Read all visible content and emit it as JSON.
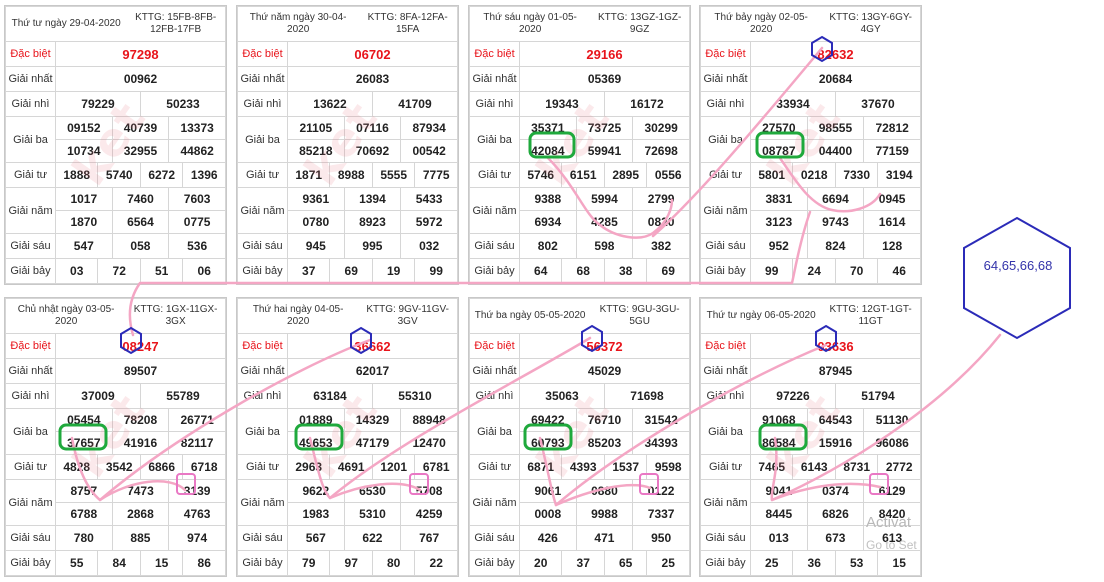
{
  "labels": {
    "db": "Đặc biệt",
    "n1": "Giải nhất",
    "n2": "Giải nhì",
    "b3": "Giải ba",
    "t4": "Giải tư",
    "n5": "Giải năm",
    "s6": "Giải sáu",
    "b7": "Giải bảy"
  },
  "cards": [
    {
      "date": "Thứ tư ngày 29-04-2020",
      "kttg": "KTTG: 15FB-8FB-12FB-17FB",
      "db": "97298",
      "n1": "00962",
      "n2": [
        "79229",
        "50233"
      ],
      "b3": [
        "09152",
        "40739",
        "13373",
        "10734",
        "32955",
        "44862"
      ],
      "t4": [
        "1888",
        "5740",
        "6272",
        "1396"
      ],
      "n5": [
        "1017",
        "7460",
        "7603",
        "1870",
        "6564",
        "0775"
      ],
      "s6": [
        "547",
        "058",
        "536"
      ],
      "b7": [
        "03",
        "72",
        "51",
        "06"
      ]
    },
    {
      "date": "Thứ năm ngày 30-04-2020",
      "kttg": "KTTG: 8FA-12FA-15FA",
      "db": "06702",
      "n1": "26083",
      "n2": [
        "13622",
        "41709"
      ],
      "b3": [
        "21105",
        "07116",
        "87934",
        "85218",
        "70692",
        "00542"
      ],
      "t4": [
        "1871",
        "8988",
        "5555",
        "7775"
      ],
      "n5": [
        "9361",
        "1394",
        "5433",
        "0780",
        "8923",
        "5972"
      ],
      "s6": [
        "945",
        "995",
        "032"
      ],
      "b7": [
        "37",
        "69",
        "19",
        "99"
      ]
    },
    {
      "date": "Thứ sáu ngày 01-05-2020",
      "kttg": "KTTG: 13GZ-1GZ-9GZ",
      "db": "29166",
      "n1": "05369",
      "n2": [
        "19343",
        "16172"
      ],
      "b3": [
        "35371",
        "73725",
        "30299",
        "42084",
        "59941",
        "72698"
      ],
      "t4": [
        "5746",
        "6151",
        "2895",
        "0556"
      ],
      "n5": [
        "9388",
        "5994",
        "2799",
        "6934",
        "4285",
        "0820"
      ],
      "s6": [
        "802",
        "598",
        "382"
      ],
      "b7": [
        "64",
        "68",
        "38",
        "69"
      ]
    },
    {
      "date": "Thứ bảy ngày 02-05-2020",
      "kttg": "KTTG: 13GY-6GY-4GY",
      "db": "82632",
      "n1": "20684",
      "n2": [
        "33934",
        "37670"
      ],
      "b3": [
        "27570",
        "98555",
        "72812",
        "08787",
        "04400",
        "77159"
      ],
      "t4": [
        "5801",
        "0218",
        "7330",
        "3194"
      ],
      "n5": [
        "3831",
        "6694",
        "0945",
        "3123",
        "9743",
        "1614"
      ],
      "s6": [
        "952",
        "824",
        "128"
      ],
      "b7": [
        "99",
        "24",
        "70",
        "46"
      ]
    },
    {
      "date": "Chủ nhật ngày 03-05-2020",
      "kttg": "KTTG: 1GX-11GX-3GX",
      "db": "08247",
      "n1": "89507",
      "n2": [
        "37009",
        "55789"
      ],
      "b3": [
        "05454",
        "78208",
        "26771",
        "37657",
        "41916",
        "82117"
      ],
      "t4": [
        "4828",
        "3542",
        "6866",
        "6718"
      ],
      "n5": [
        "8757",
        "7473",
        "3139",
        "6788",
        "2868",
        "4763"
      ],
      "s6": [
        "780",
        "885",
        "974"
      ],
      "b7": [
        "55",
        "84",
        "15",
        "86"
      ]
    },
    {
      "date": "Thứ hai ngày 04-05-2020",
      "kttg": "KTTG: 9GV-11GV-3GV",
      "db": "36662",
      "n1": "62017",
      "n2": [
        "63184",
        "55310"
      ],
      "b3": [
        "01889",
        "14329",
        "88948",
        "49653",
        "47179",
        "12470"
      ],
      "t4": [
        "2963",
        "4691",
        "1201",
        "6781"
      ],
      "n5": [
        "9622",
        "6530",
        "5708",
        "1983",
        "5310",
        "4259"
      ],
      "s6": [
        "567",
        "622",
        "767"
      ],
      "b7": [
        "79",
        "97",
        "80",
        "22"
      ]
    },
    {
      "date": "Thứ ba ngày 05-05-2020",
      "kttg": "KTTG: 9GU-3GU-5GU",
      "db": "56372",
      "n1": "45029",
      "n2": [
        "35063",
        "71698"
      ],
      "b3": [
        "69422",
        "76710",
        "31542",
        "60793",
        "85203",
        "34393"
      ],
      "t4": [
        "6871",
        "4393",
        "1537",
        "9598"
      ],
      "n5": [
        "9061",
        "0880",
        "0122",
        "0008",
        "9988",
        "7337"
      ],
      "s6": [
        "426",
        "471",
        "950"
      ],
      "b7": [
        "20",
        "37",
        "65",
        "25"
      ]
    },
    {
      "date": "Thứ tư ngày 06-05-2020",
      "kttg": "KTTG: 12GT-1GT-11GT",
      "db": "03636",
      "n1": "87945",
      "n2": [
        "97226",
        "51794"
      ],
      "b3": [
        "91068",
        "64543",
        "51130",
        "86584",
        "15916",
        "96086"
      ],
      "t4": [
        "7465",
        "6143",
        "8731",
        "2772"
      ],
      "n5": [
        "9041",
        "0374",
        "6129",
        "8445",
        "6826",
        "8420"
      ],
      "s6": [
        "013",
        "673",
        "613"
      ],
      "b7": [
        "25",
        "36",
        "53",
        "15"
      ]
    }
  ],
  "prediction": "64,65,66,68",
  "activate": {
    "line1": "Activat",
    "line2": "Go to Set"
  }
}
